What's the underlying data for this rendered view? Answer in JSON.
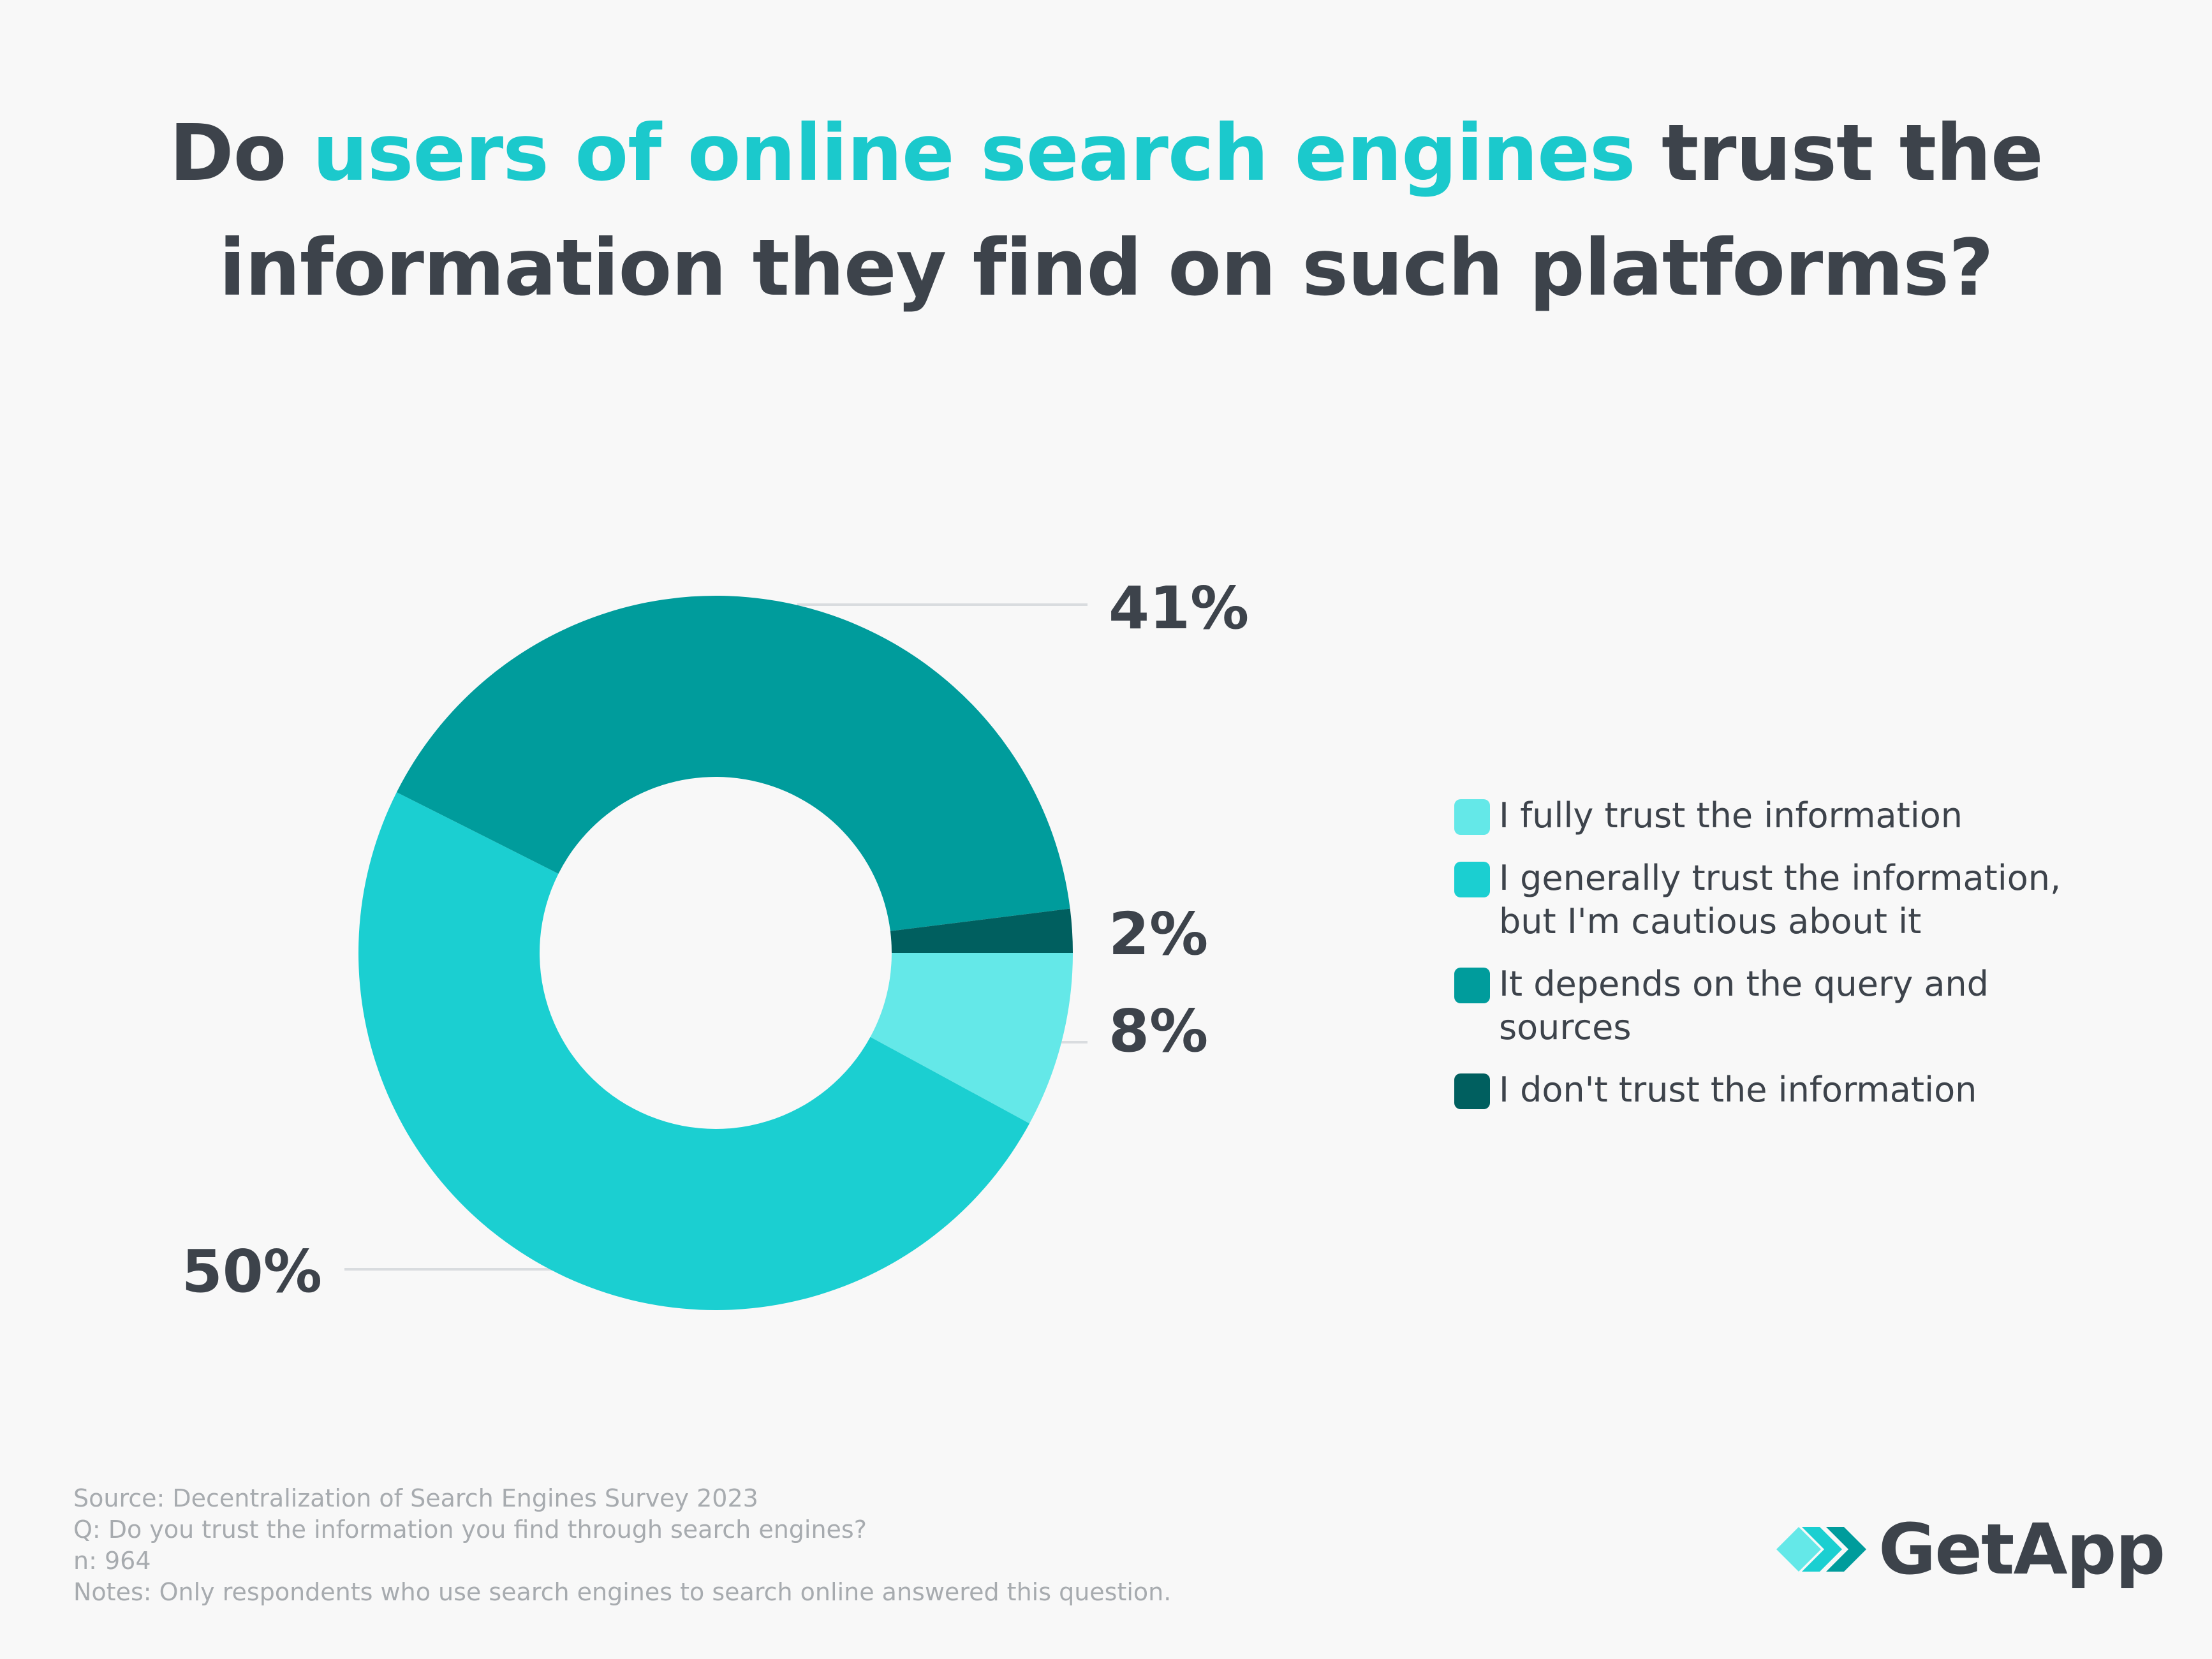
{
  "title": {
    "prefix": "Do ",
    "highlight": "users of online search engines",
    "line1_suffix": " trust the",
    "line2": "information they find on such platforms?"
  },
  "colors": {
    "background": "#f8f8f8",
    "text": "#3d434b",
    "highlight": "#1bc9cc",
    "footer_text": "#a7abaf"
  },
  "chart_data": {
    "type": "pie",
    "donut": true,
    "slices": [
      {
        "category": "I fully trust the information",
        "value": 8,
        "label": "8%",
        "color": "#64e8e8"
      },
      {
        "category": "I generally trust the information, but I'm cautious about it",
        "value": 50,
        "label": "50%",
        "color": "#1bcfd1"
      },
      {
        "category": "It depends on the query and sources",
        "value": 41,
        "label": "41%",
        "color": "#009c9c"
      },
      {
        "category": "I don't trust the information",
        "value": 2,
        "label": "2%",
        "color": "#005f5f"
      }
    ],
    "legend_position": "right"
  },
  "legend": {
    "items": [
      {
        "lines": [
          "I fully trust the information"
        ],
        "color": "#64e8e8"
      },
      {
        "lines": [
          "I generally trust the information,",
          "but I'm cautious about it"
        ],
        "color": "#1bcfd1"
      },
      {
        "lines": [
          "It depends on the query and",
          "sources"
        ],
        "color": "#009c9c"
      },
      {
        "lines": [
          "I don't trust the information"
        ],
        "color": "#005f5f"
      }
    ]
  },
  "footer": {
    "source": "Source: Decentralization of Search Engines Survey 2023",
    "question": "Q: Do you trust the information you find through search engines?",
    "n": "n: 964",
    "notes": "Notes: Only respondents who use search engines to search online answered this question."
  },
  "logo": {
    "text": "GetApp",
    "icon": "getapp-chevrons-icon"
  }
}
